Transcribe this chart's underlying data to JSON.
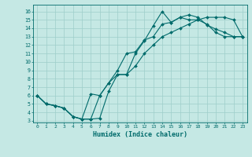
{
  "xlabel": "Humidex (Indice chaleur)",
  "xlim": [
    -0.5,
    23.5
  ],
  "ylim": [
    2.8,
    16.8
  ],
  "yticks": [
    3,
    4,
    5,
    6,
    7,
    8,
    9,
    10,
    11,
    12,
    13,
    14,
    15,
    16
  ],
  "xticks": [
    0,
    1,
    2,
    3,
    4,
    5,
    6,
    7,
    8,
    9,
    10,
    11,
    12,
    13,
    14,
    15,
    16,
    17,
    18,
    19,
    20,
    21,
    22,
    23
  ],
  "bg_color": "#c5e8e4",
  "grid_color": "#9ececa",
  "line_color": "#006b6b",
  "curve1_x": [
    0,
    1,
    2,
    3,
    4,
    5,
    6,
    7,
    8,
    9,
    10,
    11,
    12,
    13,
    14,
    15,
    16,
    17,
    18,
    19,
    20,
    21,
    22,
    23
  ],
  "curve1_y": [
    6.0,
    5.0,
    4.8,
    4.5,
    3.5,
    3.2,
    3.2,
    3.3,
    6.5,
    8.5,
    8.5,
    11.0,
    12.5,
    14.3,
    16.0,
    14.7,
    15.3,
    15.6,
    15.3,
    14.4,
    13.9,
    13.5,
    13.0,
    13.0
  ],
  "curve2_x": [
    0,
    1,
    2,
    3,
    4,
    5,
    6,
    7,
    8,
    9,
    10,
    11,
    12,
    13,
    14,
    15,
    16,
    17,
    18,
    19,
    20,
    21,
    22,
    23
  ],
  "curve2_y": [
    6.0,
    5.0,
    4.8,
    4.5,
    3.5,
    3.2,
    6.2,
    6.0,
    7.5,
    9.0,
    11.0,
    11.2,
    12.6,
    13.0,
    14.5,
    14.7,
    15.3,
    15.0,
    15.0,
    14.5,
    13.5,
    13.0,
    13.0,
    13.0
  ],
  "curve3_x": [
    0,
    1,
    2,
    3,
    4,
    5,
    6,
    7,
    8,
    9,
    10,
    11,
    12,
    13,
    14,
    15,
    16,
    17,
    18,
    19,
    20,
    21,
    22,
    23
  ],
  "curve3_y": [
    6.0,
    5.0,
    4.8,
    4.5,
    3.5,
    3.2,
    3.2,
    6.0,
    7.5,
    8.5,
    8.5,
    9.5,
    11.0,
    12.0,
    13.0,
    13.5,
    14.0,
    14.5,
    15.0,
    15.3,
    15.3,
    15.3,
    15.0,
    13.0
  ]
}
